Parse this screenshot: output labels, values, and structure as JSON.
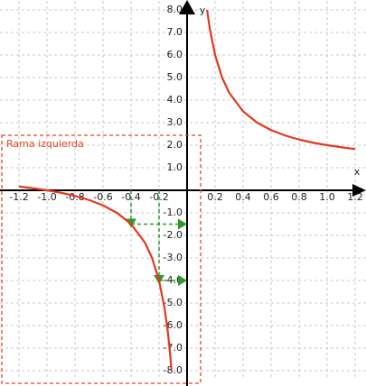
{
  "chart_data": {
    "type": "line",
    "x_label": "x",
    "y_label": "y",
    "series": [
      {
        "color": "#e03a1e",
        "x": [
          -1.2,
          -1.1,
          -1.0,
          -0.9,
          -0.8,
          -0.7,
          -0.6,
          -0.5,
          -0.4,
          -0.3,
          -0.25,
          -0.2,
          -0.16,
          -0.14,
          -0.125,
          -0.111,
          null,
          0.143,
          0.16,
          0.2,
          0.25,
          0.3,
          0.4,
          0.5,
          0.6,
          0.7,
          0.8,
          0.9,
          1.0,
          1.1,
          1.2
        ],
        "values": [
          0.17,
          0.09,
          0,
          -0.11,
          -0.25,
          -0.43,
          -0.67,
          -1.0,
          -1.5,
          -2.33,
          -3.0,
          -4.0,
          -5.25,
          -6.14,
          -7.0,
          -8.0,
          null,
          8.0,
          7.25,
          6.0,
          5.0,
          4.33,
          3.5,
          3.0,
          2.67,
          2.43,
          2.25,
          2.11,
          2.0,
          1.91,
          1.83
        ]
      }
    ],
    "guides": {
      "color": "#2e9a2e",
      "points": [
        {
          "x": -0.4,
          "y": -1.5
        },
        {
          "x": -0.2,
          "y": -4.0
        }
      ]
    },
    "annotation": {
      "text": "Rama izquierda",
      "color": "#e8431f"
    },
    "xlim": [
      -1.3,
      1.3
    ],
    "ylim": [
      -8.4,
      8.4
    ],
    "xticks": [
      {
        "value": -1.2,
        "label": "-1.2"
      },
      {
        "value": -1.0,
        "label": "-1.0"
      },
      {
        "value": -0.8,
        "label": "-0.8"
      },
      {
        "value": -0.6,
        "label": "-0.6"
      },
      {
        "value": -0.4,
        "label": "-0.4"
      },
      {
        "value": -0.2,
        "label": "-0.2"
      },
      {
        "value": 0.2,
        "label": "0.2"
      },
      {
        "value": 0.4,
        "label": "0.4"
      },
      {
        "value": 0.6,
        "label": "0.6"
      },
      {
        "value": 0.8,
        "label": "0.8"
      },
      {
        "value": 1.0,
        "label": "1.0"
      },
      {
        "value": 1.2,
        "label": "1.2"
      }
    ],
    "yticks": [
      {
        "value": 8,
        "label": "8.0"
      },
      {
        "value": 7,
        "label": "7.0"
      },
      {
        "value": 6,
        "label": "6.0"
      },
      {
        "value": 5,
        "label": "5.0"
      },
      {
        "value": 4,
        "label": "4.0"
      },
      {
        "value": 3,
        "label": "3.0"
      },
      {
        "value": 2,
        "label": "2.0"
      },
      {
        "value": 1,
        "label": "1.0"
      },
      {
        "value": -1,
        "label": "-1.0"
      },
      {
        "value": -2,
        "label": "-2.0"
      },
      {
        "value": -3,
        "label": "-3.0"
      },
      {
        "value": -4,
        "label": "-4.0"
      },
      {
        "value": -5,
        "label": "-5.0"
      },
      {
        "value": -6,
        "label": "-6.0"
      },
      {
        "value": -7,
        "label": "-7.0"
      },
      {
        "value": -8,
        "label": "-8.0"
      }
    ],
    "grid": true
  }
}
